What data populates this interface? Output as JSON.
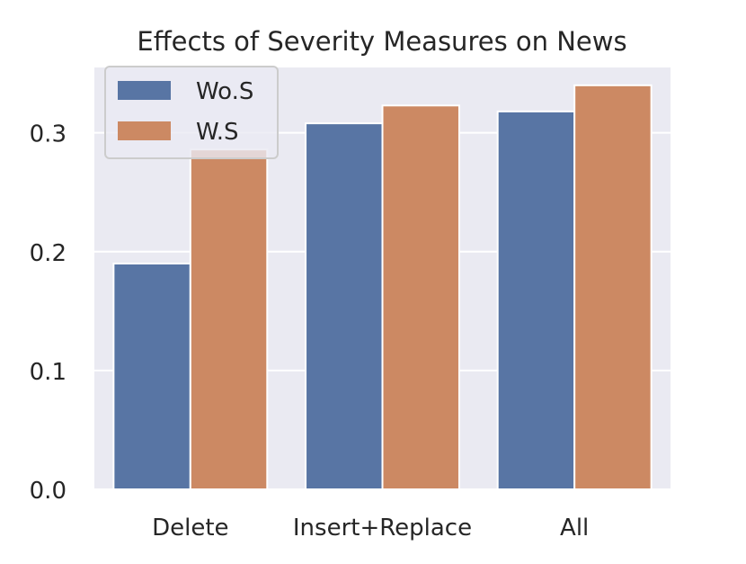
{
  "chart_data": {
    "type": "bar",
    "title": "Effects of Severity Measures on News",
    "xlabel": "",
    "ylabel": "",
    "categories": [
      "Delete",
      "Insert+Replace",
      "All"
    ],
    "series": [
      {
        "name": "Wo.S",
        "values": [
          0.19,
          0.308,
          0.318
        ],
        "color": "#5875a4"
      },
      {
        "name": "W.S",
        "values": [
          0.286,
          0.323,
          0.34
        ],
        "color": "#cc8963"
      }
    ],
    "ylim": [
      0,
      0.355
    ],
    "yticks": [
      0.0,
      0.1,
      0.2,
      0.3
    ],
    "ytick_labels": [
      "0.0",
      "0.1",
      "0.2",
      "0.3"
    ],
    "grid": true,
    "legend_position": "top-left",
    "background_color": "#eaeaf2"
  }
}
